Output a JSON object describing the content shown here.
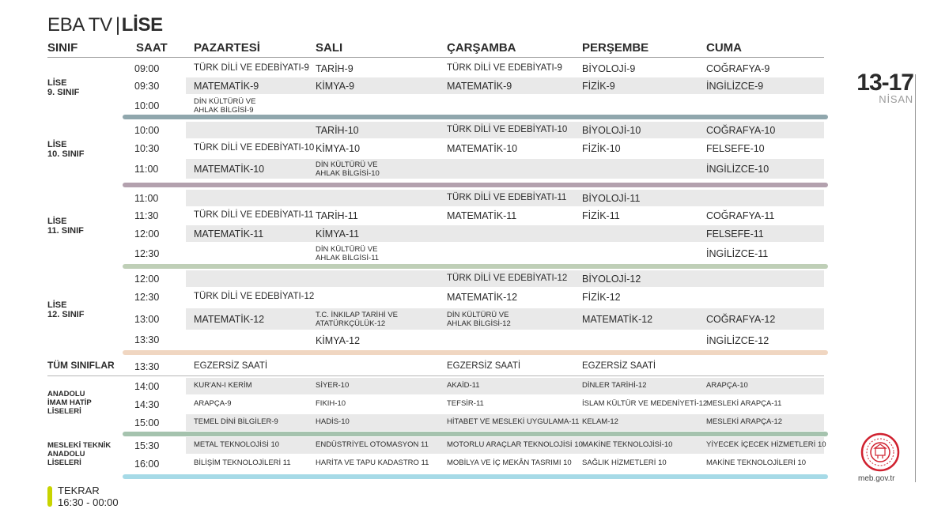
{
  "title": {
    "main": "EBA TV",
    "sep": "|",
    "strong": "LİSE"
  },
  "headers": [
    "SINIF",
    "SAAT",
    "PAZARTESİ",
    "SALI",
    "ÇARŞAMBA",
    "PERŞEMBE",
    "CUMA"
  ],
  "date": {
    "range": "13-17",
    "month": "NİSAN"
  },
  "site": "meb.gov.tr",
  "tekrar": {
    "title": "TEKRAR",
    "time": "16:30 - 00:00"
  },
  "colors": {
    "bar_9": "#90a7ad",
    "bar_10": "#b3a1ae",
    "bar_11": "#bfcfb7",
    "bar_12": "#f0d6c1",
    "bar_imam": "#a5c3ae",
    "bar_meslek": "#a6dae7",
    "tekrar": "#c8d400",
    "logo": "#d0212f"
  },
  "sections": [
    {
      "group": [
        "LİSE",
        "9. SINIF"
      ],
      "rows": [
        {
          "time": "09:00",
          "cells": [
            "TÜRK DİLİ VE EDEBİYATI-9",
            "TARİH-9",
            "TÜRK DİLİ VE EDEBİYATI-9",
            "BİYOLOJİ-9",
            "COĞRAFYA-9"
          ]
        },
        {
          "time": "09:30",
          "cells": [
            "MATEMATİK-9",
            "KİMYA-9",
            "MATEMATİK-9",
            "FİZİK-9",
            "İNGİLİZCE-9"
          ]
        },
        {
          "time": "10:00",
          "cells": [
            "DİN KÜLTÜRÜ VE\nAHLAK BİLGİSİ-9",
            "",
            "",
            "",
            ""
          ]
        }
      ]
    },
    {
      "group": [
        "LİSE",
        "10. SINIF"
      ],
      "rows": [
        {
          "time": "10:00",
          "cells": [
            "",
            "TARİH-10",
            "TÜRK DİLİ VE EDEBİYATI-10",
            "BİYOLOJİ-10",
            "COĞRAFYA-10"
          ]
        },
        {
          "time": "10:30",
          "cells": [
            "TÜRK DİLİ VE EDEBİYATI-10",
            "KİMYA-10",
            "MATEMATİK-10",
            "FİZİK-10",
            "FELSEFE-10"
          ]
        },
        {
          "time": "11:00",
          "cells": [
            "MATEMATİK-10",
            "DİN KÜLTÜRÜ VE\nAHLAK BİLGİSİ-10",
            "",
            "",
            "İNGİLİZCE-10"
          ]
        }
      ]
    },
    {
      "group": [
        "LİSE",
        "11. SINIF"
      ],
      "rows": [
        {
          "time": "11:00",
          "cells": [
            "",
            "",
            "TÜRK DİLİ VE EDEBİYATI-11",
            "BİYOLOJİ-11",
            ""
          ]
        },
        {
          "time": "11:30",
          "cells": [
            "TÜRK DİLİ VE EDEBİYATI-11",
            "TARİH-11",
            "MATEMATİK-11",
            "FİZİK-11",
            "COĞRAFYA-11"
          ]
        },
        {
          "time": "12:00",
          "cells": [
            "MATEMATİK-11",
            "KİMYA-11",
            "",
            "",
            "FELSEFE-11"
          ]
        },
        {
          "time": "12:30",
          "cells": [
            "",
            "DİN KÜLTÜRÜ VE\nAHLAK BİLGİSİ-11",
            "",
            "",
            "İNGİLİZCE-11"
          ]
        }
      ]
    },
    {
      "group": [
        "LİSE",
        "12. SINIF"
      ],
      "rows": [
        {
          "time": "12:00",
          "cells": [
            "",
            "",
            "TÜRK DİLİ VE EDEBİYATI-12",
            "BİYOLOJİ-12",
            ""
          ]
        },
        {
          "time": "12:30",
          "cells": [
            "TÜRK DİLİ VE EDEBİYATI-12",
            "",
            "MATEMATİK-12",
            "FİZİK-12",
            ""
          ]
        },
        {
          "time": "13:00",
          "cells": [
            "MATEMATİK-12",
            "T.C. İNKILAP TARİHİ VE\nATATÜRKÇÜLÜK-12",
            "DİN KÜLTÜRÜ VE\nAHLAK BİLGİSİ-12",
            "MATEMATİK-12",
            "COĞRAFYA-12"
          ]
        },
        {
          "time": "13:30",
          "cells": [
            "",
            "KİMYA-12",
            "",
            "",
            "İNGİLİZCE-12"
          ]
        }
      ]
    },
    {
      "group": [
        "TÜM SINIFLAR"
      ],
      "rows": [
        {
          "time": "13:30",
          "cells": [
            "EGZERSİZ SAATİ",
            "",
            "EGZERSİZ SAATİ",
            "EGZERSİZ SAATİ",
            ""
          ]
        }
      ]
    },
    {
      "group": [
        "ANADOLU",
        "İMAM HATİP",
        "LİSELERİ"
      ],
      "rows": [
        {
          "time": "14:00",
          "cells": [
            "KUR'AN-I KERİM",
            "SİYER-10",
            "AKAİD-11",
            "DİNLER TARİHİ-12",
            "ARAPÇA-10"
          ]
        },
        {
          "time": "14:30",
          "cells": [
            "ARAPÇA-9",
            "FIKIH-10",
            "TEFSİR-11",
            "İSLAM KÜLTÜR VE MEDENİYETİ-12",
            "MESLEKİ ARAPÇA-11"
          ]
        },
        {
          "time": "15:00",
          "cells": [
            "TEMEL DİNİ BİLGİLER-9",
            "HADİS-10",
            "HİTABET VE MESLEKİ UYGULAMA-11",
            "KELAM-12",
            "MESLEKİ ARAPÇA-12"
          ]
        }
      ]
    },
    {
      "group": [
        "MESLEKİ TEKNİK",
        "ANADOLU",
        "LİSELERİ"
      ],
      "rows": [
        {
          "time": "15:30",
          "cells": [
            "METAL TEKNOLOJİSİ 10",
            "ENDÜSTRİYEL OTOMASYON 11",
            "MOTORLU ARAÇLAR TEKNOLOJİSİ 10",
            "MAKİNE TEKNOLOJİSİ-10",
            "YİYECEK İÇECEK HİZMETLERİ 10"
          ]
        },
        {
          "time": "16:00",
          "cells": [
            "BİLİŞİM TEKNOLOJİLERİ 11",
            "HARİTA VE TAPU KADASTRO 11",
            "MOBİLYA VE İÇ MEKÂN TASRIMI 10",
            "SAĞLIK HİZMETLERİ 10",
            "MAKİNE TEKNOLOJİLERİ 10"
          ]
        }
      ]
    }
  ]
}
